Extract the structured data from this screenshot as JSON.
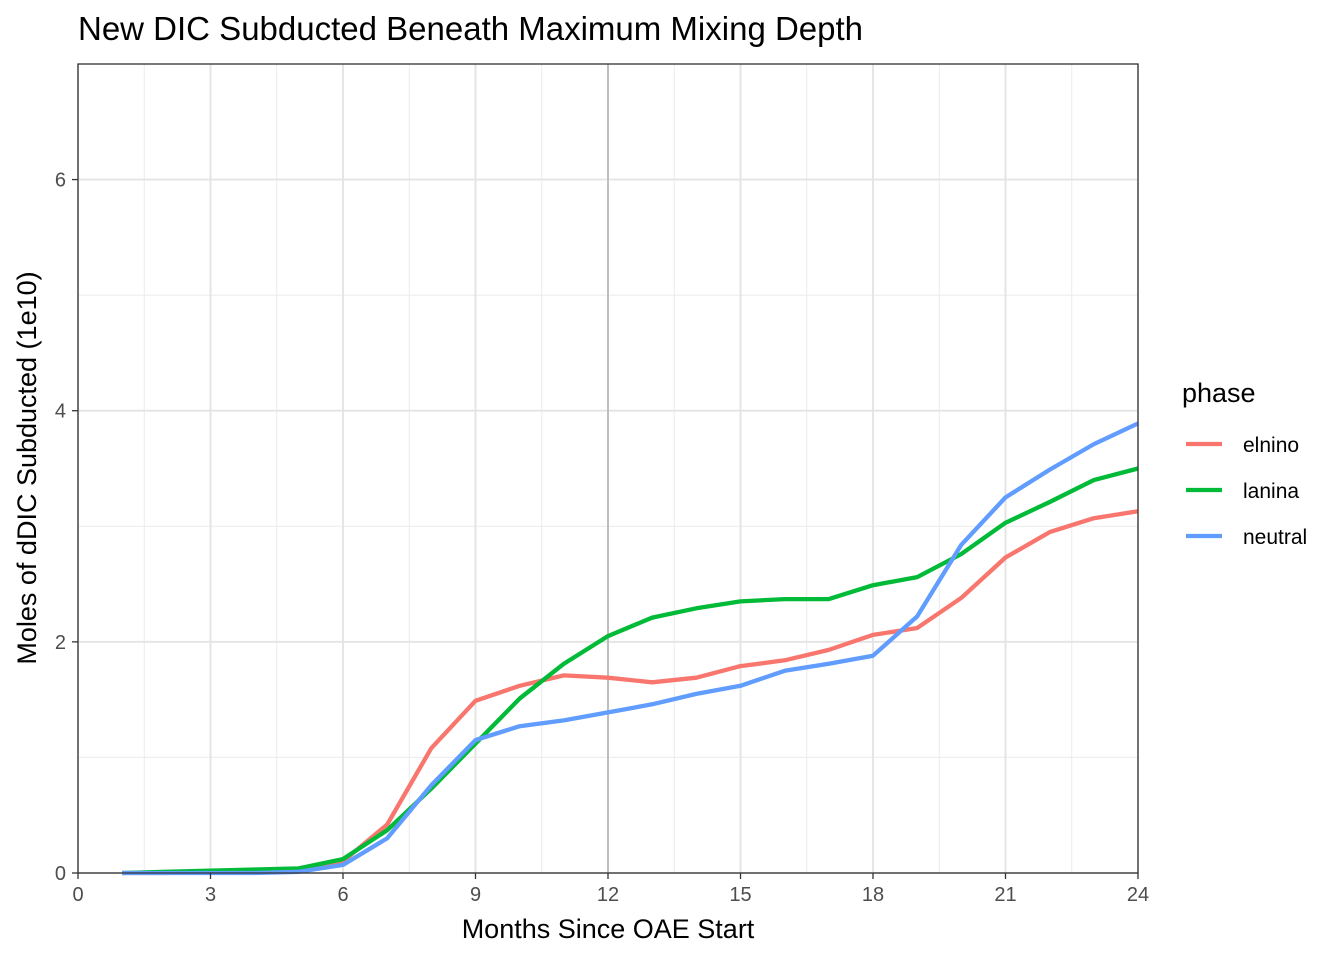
{
  "chart_data": {
    "type": "line",
    "title": "New DIC Subducted Beneath Maximum Mixing Depth",
    "xlabel": "Months Since OAE Start",
    "ylabel": "Moles of dDIC Subducted (1e10)",
    "xlim": [
      0,
      24
    ],
    "ylim": [
      0,
      7
    ],
    "x_ticks": [
      0,
      3,
      6,
      9,
      12,
      15,
      18,
      21,
      24
    ],
    "y_ticks": [
      0,
      2,
      4,
      6
    ],
    "grid": true,
    "vline_x": 12,
    "legend": {
      "title": "phase",
      "position": "right"
    },
    "series": [
      {
        "name": "elnino",
        "color": "#F8766D",
        "x": [
          1,
          2,
          3,
          4,
          5,
          6,
          7,
          8,
          9,
          10,
          11,
          12,
          13,
          14,
          15,
          16,
          17,
          18,
          19,
          20,
          21,
          22,
          23,
          24
        ],
        "y": [
          0.0,
          0.0,
          0.01,
          0.02,
          0.03,
          0.1,
          0.42,
          1.08,
          1.49,
          1.62,
          1.71,
          1.69,
          1.65,
          1.69,
          1.79,
          1.84,
          1.93,
          2.06,
          2.12,
          2.38,
          2.73,
          2.95,
          3.07,
          3.13
        ]
      },
      {
        "name": "lanina",
        "color": "#00BA38",
        "x": [
          1,
          2,
          3,
          4,
          5,
          6,
          7,
          8,
          9,
          10,
          11,
          12,
          13,
          14,
          15,
          16,
          17,
          18,
          19,
          20,
          21,
          22,
          23,
          24
        ],
        "y": [
          0.0,
          0.01,
          0.02,
          0.03,
          0.04,
          0.12,
          0.37,
          0.73,
          1.12,
          1.51,
          1.81,
          2.05,
          2.21,
          2.29,
          2.35,
          2.37,
          2.37,
          2.49,
          2.56,
          2.76,
          3.03,
          3.21,
          3.4,
          3.5
        ]
      },
      {
        "name": "neutral",
        "color": "#619CFF",
        "x": [
          1,
          2,
          3,
          4,
          5,
          6,
          7,
          8,
          9,
          10,
          11,
          12,
          13,
          14,
          15,
          16,
          17,
          18,
          19,
          20,
          21,
          22,
          23,
          24
        ],
        "y": [
          0.0,
          0.0,
          0.0,
          0.0,
          0.01,
          0.07,
          0.3,
          0.76,
          1.15,
          1.27,
          1.32,
          1.39,
          1.46,
          1.55,
          1.62,
          1.75,
          1.81,
          1.88,
          2.22,
          2.84,
          3.25,
          3.49,
          3.71,
          3.89
        ]
      }
    ]
  }
}
